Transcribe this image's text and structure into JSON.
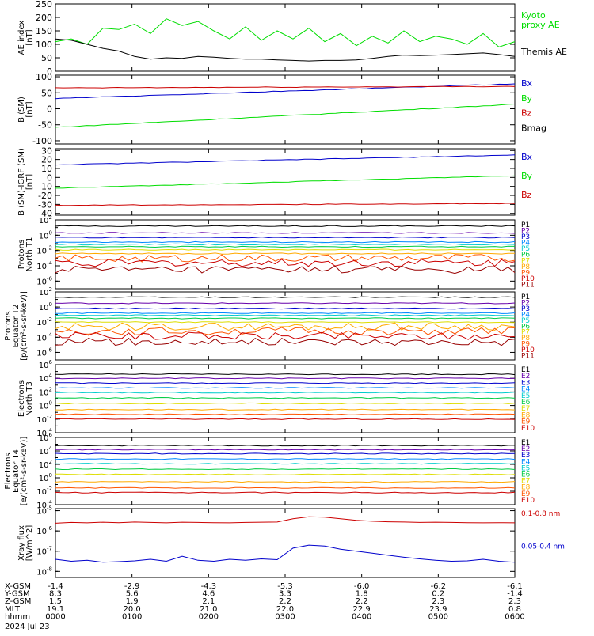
{
  "chart_data": [
    {
      "type": "line",
      "ylabel_lines": [
        "AE index",
        "[nT]"
      ],
      "ylim": [
        0,
        250
      ],
      "yticks": [
        "0",
        "50",
        "100",
        "150",
        "200",
        "250"
      ],
      "series": [
        {
          "name": "Kyoto proxy AE",
          "label_lines": [
            "Kyoto",
            "proxy AE"
          ],
          "color": "#00dd00",
          "values": [
            110,
            120,
            100,
            160,
            155,
            175,
            140,
            195,
            170,
            185,
            150,
            120,
            165,
            115,
            150,
            120,
            160,
            110,
            140,
            95,
            130,
            105,
            150,
            110,
            130,
            120,
            100,
            140,
            90,
            110
          ]
        },
        {
          "name": "Themis AE",
          "label_lines": [
            "Themis AE"
          ],
          "color": "#000000",
          "values": [
            120,
            115,
            100,
            85,
            75,
            55,
            45,
            50,
            48,
            55,
            52,
            48,
            45,
            45,
            42,
            40,
            38,
            40,
            40,
            42,
            48,
            55,
            60,
            58,
            60,
            62,
            65,
            68,
            62,
            55
          ]
        }
      ]
    },
    {
      "type": "line",
      "ylabel_lines": [
        "B (SM)",
        "[nT]"
      ],
      "ylim": [
        -110,
        105
      ],
      "yticks": [
        "-100",
        "-50",
        "0",
        "50",
        "100"
      ],
      "series": [
        {
          "name": "Bx",
          "color": "#0000cc",
          "start": 32,
          "end": 78
        },
        {
          "name": "By",
          "color": "#00dd00",
          "start": -58,
          "end": 14
        },
        {
          "name": "Bz",
          "color": "#cc0000",
          "start": 65,
          "end": 70
        },
        {
          "name": "Bmag",
          "color": "#000000",
          "start": null,
          "end": null
        }
      ]
    },
    {
      "type": "line",
      "ylabel_lines": [
        "B (SM)-IGRF (SM)",
        "[nT]"
      ],
      "ylim": [
        -42,
        32
      ],
      "yticks": [
        "-40",
        "-30",
        "-20",
        "-10",
        "0",
        "10",
        "20",
        "30"
      ],
      "series": [
        {
          "name": "Bx",
          "color": "#0000cc",
          "start": 14,
          "end": 25
        },
        {
          "name": "By",
          "color": "#00dd00",
          "start": -12,
          "end": 2
        },
        {
          "name": "Bz",
          "color": "#cc0000",
          "start": -31,
          "end": -29
        }
      ]
    },
    {
      "type": "line",
      "scale": "log",
      "ylabel_lines": [
        "Protons",
        "North T1"
      ],
      "ylim_exp": [
        -7,
        2
      ],
      "yticks_exp": [
        -6,
        -4,
        -2,
        0,
        2
      ],
      "series": [
        {
          "name": "P1",
          "color": "#000000",
          "level": 1.2
        },
        {
          "name": "P2",
          "color": "#6600aa",
          "level": 0.3
        },
        {
          "name": "P3",
          "color": "#0000cc",
          "level": -0.3
        },
        {
          "name": "P4",
          "color": "#0088ff",
          "level": -0.9
        },
        {
          "name": "P5",
          "color": "#00cccc",
          "level": -1.2
        },
        {
          "name": "P6",
          "color": "#00cc44",
          "level": -1.5
        },
        {
          "name": "P7",
          "color": "#dddd00",
          "level": -1.9
        },
        {
          "name": "P8",
          "color": "#ffaa00",
          "level": -2.4
        },
        {
          "name": "P9",
          "color": "#ff5500",
          "level": -3.0
        },
        {
          "name": "P10",
          "color": "#cc0000",
          "level": -3.6
        },
        {
          "name": "P11",
          "color": "#990000",
          "level": -4.5
        }
      ]
    },
    {
      "type": "line",
      "scale": "log",
      "ylabel_lines": [
        "Protons",
        "Equator T2",
        "[p/(cm²-s-sr-keV)]"
      ],
      "ylim_exp": [
        -7,
        2
      ],
      "yticks_exp": [
        -6,
        -4,
        -2,
        0,
        2
      ],
      "series": [
        {
          "name": "P1",
          "color": "#000000",
          "level": 1.3
        },
        {
          "name": "P2",
          "color": "#6600aa",
          "level": 0.5
        },
        {
          "name": "P3",
          "color": "#0000cc",
          "level": -0.2
        },
        {
          "name": "P4",
          "color": "#0088ff",
          "level": -0.8
        },
        {
          "name": "P5",
          "color": "#00cccc",
          "level": -1.1
        },
        {
          "name": "P6",
          "color": "#00cc44",
          "level": -1.5
        },
        {
          "name": "P7",
          "color": "#dddd00",
          "level": -2.0
        },
        {
          "name": "P8",
          "color": "#ffaa00",
          "level": -2.6
        },
        {
          "name": "P9",
          "color": "#ff5500",
          "level": -3.2
        },
        {
          "name": "P10",
          "color": "#cc0000",
          "level": -3.8
        },
        {
          "name": "P11",
          "color": "#990000",
          "level": -4.6
        }
      ]
    },
    {
      "type": "line",
      "scale": "log",
      "ylabel_lines": [
        "Electrons",
        "North T3"
      ],
      "ylim_exp": [
        -4,
        6
      ],
      "yticks_exp": [
        -4,
        -2,
        0,
        2,
        4,
        6
      ],
      "series": [
        {
          "name": "E1",
          "color": "#000000",
          "level": 4.6
        },
        {
          "name": "E2",
          "color": "#6600aa",
          "level": 4.0
        },
        {
          "name": "E3",
          "color": "#0000cc",
          "level": 3.3
        },
        {
          "name": "E4",
          "color": "#0088ff",
          "level": 2.6
        },
        {
          "name": "E5",
          "color": "#00cccc",
          "level": 1.9
        },
        {
          "name": "E6",
          "color": "#00cc44",
          "level": 1.1
        },
        {
          "name": "E7",
          "color": "#dddd00",
          "level": 0.3
        },
        {
          "name": "E8",
          "color": "#ffaa00",
          "level": -0.6
        },
        {
          "name": "E9",
          "color": "#ff5500",
          "level": -1.3
        },
        {
          "name": "E10",
          "color": "#cc0000",
          "level": -2.0
        }
      ]
    },
    {
      "type": "line",
      "scale": "log",
      "ylabel_lines": [
        "Electrons",
        "Equator T4",
        "[e/(cm²-s-sr-keV)]"
      ],
      "ylim_exp": [
        -4,
        6
      ],
      "yticks_exp": [
        -4,
        -2,
        0,
        2,
        4,
        6
      ],
      "series": [
        {
          "name": "E1",
          "color": "#000000",
          "level": 4.8
        },
        {
          "name": "E2",
          "color": "#6600aa",
          "level": 4.2
        },
        {
          "name": "E3",
          "color": "#0000cc",
          "level": 3.6
        },
        {
          "name": "E4",
          "color": "#0088ff",
          "level": 2.8
        },
        {
          "name": "E5",
          "color": "#00cccc",
          "level": 2.1
        },
        {
          "name": "E6",
          "color": "#00cc44",
          "level": 1.3
        },
        {
          "name": "E7",
          "color": "#dddd00",
          "level": 0.5
        },
        {
          "name": "E8",
          "color": "#ffaa00",
          "level": -0.6
        },
        {
          "name": "E9",
          "color": "#ff5500",
          "level": -1.5
        },
        {
          "name": "E10",
          "color": "#cc0000",
          "level": -2.2
        }
      ]
    },
    {
      "type": "line",
      "scale": "log",
      "ylabel_lines": [
        "Xray flux",
        "[W/m^2]"
      ],
      "ylim_exp": [
        -8.3,
        -4.9
      ],
      "yticks_exp": [
        -8,
        -7,
        -6,
        -5
      ],
      "series": [
        {
          "name": "0.1-0.8 nm",
          "color": "#cc0000",
          "values": [
            -5.62,
            -5.58,
            -5.6,
            -5.57,
            -5.59,
            -5.56,
            -5.58,
            -5.6,
            -5.57,
            -5.58,
            -5.59,
            -5.6,
            -5.58,
            -5.57,
            -5.56,
            -5.4,
            -5.3,
            -5.32,
            -5.4,
            -5.48,
            -5.52,
            -5.55,
            -5.56,
            -5.58,
            -5.57,
            -5.58,
            -5.59,
            -5.6,
            -5.59,
            -5.6
          ]
        },
        {
          "name": "0.05-0.4 nm",
          "color": "#0000cc",
          "values": [
            -7.4,
            -7.5,
            -7.45,
            -7.55,
            -7.52,
            -7.48,
            -7.4,
            -7.5,
            -7.25,
            -7.45,
            -7.5,
            -7.4,
            -7.45,
            -7.38,
            -7.42,
            -6.85,
            -6.7,
            -6.75,
            -6.9,
            -7.0,
            -7.1,
            -7.2,
            -7.3,
            -7.38,
            -7.45,
            -7.5,
            -7.48,
            -7.4,
            -7.5,
            -7.55
          ]
        }
      ]
    }
  ],
  "xaxis": {
    "rows": [
      {
        "label": "X-GSM",
        "values": [
          "-1.4",
          "-2.9",
          "-4.3",
          "-5.3",
          "-6.0",
          "-6.2",
          "-6.1"
        ]
      },
      {
        "label": "Y-GSM",
        "values": [
          "8.3",
          "5.6",
          "4.6",
          "3.3",
          "1.8",
          "0.2",
          "-1.4"
        ]
      },
      {
        "label": "Z-GSM",
        "values": [
          "1.5",
          "1.9",
          "2.1",
          "2.2",
          "2.2",
          "2.3",
          "2.3"
        ]
      },
      {
        "label": "MLT",
        "values": [
          "19.1",
          "20.0",
          "21.0",
          "22.0",
          "22.9",
          "23.9",
          "0.8"
        ]
      },
      {
        "label": "hhmm",
        "values": [
          "0000",
          "0100",
          "0200",
          "0300",
          "0400",
          "0500",
          "0600"
        ]
      }
    ],
    "date": "2024 Jul 23"
  }
}
